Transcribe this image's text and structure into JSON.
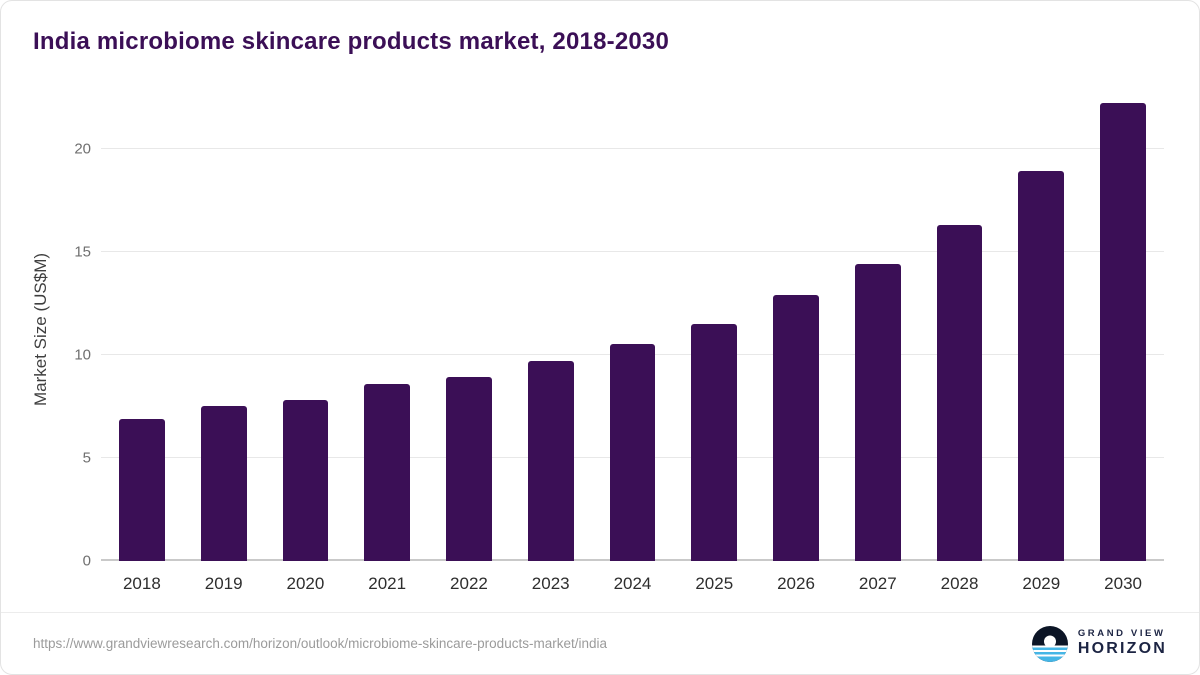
{
  "title": "India microbiome skincare products market, 2018-2030",
  "chart_data": {
    "type": "bar",
    "title": "India microbiome skincare products market, 2018-2030",
    "categories": [
      "2018",
      "2019",
      "2020",
      "2021",
      "2022",
      "2023",
      "2024",
      "2025",
      "2026",
      "2027",
      "2028",
      "2029",
      "2030"
    ],
    "values": [
      6.9,
      7.5,
      7.8,
      8.6,
      8.9,
      9.7,
      10.5,
      11.5,
      12.9,
      14.4,
      16.3,
      18.9,
      22.2
    ],
    "xlabel": "",
    "ylabel": "Market Size (US$M)",
    "ylim": [
      0,
      22.5
    ],
    "yticks": [
      0,
      5,
      10,
      15,
      20
    ],
    "grid": "horizontal",
    "legend": "none",
    "bar_color": "#3b0f56"
  },
  "colors": {
    "title": "#3b0f56",
    "bar": "#3b0f56",
    "gridline": "#e8e8e8",
    "axis": "#c9c9c9",
    "tick_label": "#6f6f6f",
    "x_label": "#2e2e2e",
    "brand_navy": "#1c2443",
    "brand_cyan": "#45b6e6"
  },
  "footer": {
    "source_url": "https://www.grandviewresearch.com/horizon/outlook/microbiome-skincare-products-market/india",
    "brand": {
      "line1": "GRAND VIEW",
      "line2": "HORIZON"
    }
  }
}
